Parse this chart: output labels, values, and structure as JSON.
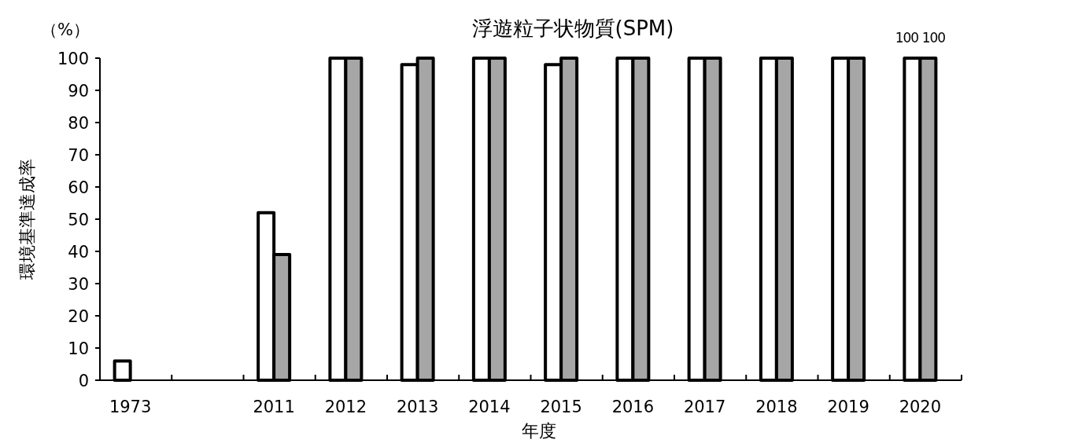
{
  "chart_data": {
    "type": "bar",
    "title": "浮遊粒子状物質(SPM)",
    "xlabel": "年度",
    "ylabel": "環境基準達成率",
    "annotations": [
      "（%）"
    ],
    "categories": [
      "1973",
      null,
      "2011",
      "2012",
      "2013",
      "2014",
      "2015",
      "2016",
      "2017",
      "2018",
      "2019",
      "2020"
    ],
    "series": [
      {
        "color": "#ffffff",
        "values": [
          6,
          null,
          52,
          100,
          98,
          100,
          98,
          100,
          100,
          100,
          100,
          100
        ],
        "value_labels": [
          null,
          null,
          null,
          null,
          null,
          null,
          null,
          null,
          null,
          null,
          null,
          "100"
        ]
      },
      {
        "color": "#a6a6a6",
        "values": [
          null,
          null,
          39,
          100,
          100,
          100,
          100,
          100,
          100,
          100,
          100,
          100
        ],
        "value_labels": [
          null,
          null,
          null,
          null,
          null,
          null,
          null,
          null,
          null,
          null,
          null,
          "100"
        ]
      }
    ],
    "ylim": [
      0,
      100
    ],
    "yticks": [
      0,
      10,
      20,
      30,
      40,
      50,
      60,
      70,
      80,
      90,
      100
    ],
    "grid": false
  }
}
